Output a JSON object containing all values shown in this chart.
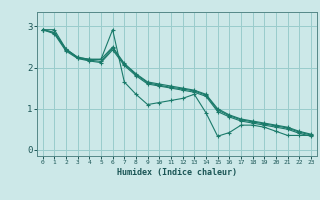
{
  "xlabel": "Humidex (Indice chaleur)",
  "bg_color": "#cce8e8",
  "grid_color": "#99cccc",
  "line_color": "#1a7a6a",
  "xlim": [
    -0.5,
    23.5
  ],
  "ylim": [
    -0.15,
    3.35
  ],
  "yticks": [
    0,
    1,
    2,
    3
  ],
  "xticks": [
    0,
    1,
    2,
    3,
    4,
    5,
    6,
    7,
    8,
    9,
    10,
    11,
    12,
    13,
    14,
    15,
    16,
    17,
    18,
    19,
    20,
    21,
    22,
    23
  ],
  "series": [
    {
      "x": [
        0,
        1,
        2,
        3,
        4,
        5,
        6,
        7,
        8,
        9,
        10,
        11,
        12,
        13,
        14,
        15,
        16,
        17,
        18,
        19,
        20,
        21,
        22,
        23
      ],
      "y": [
        2.92,
        2.92,
        2.45,
        2.25,
        2.2,
        2.2,
        2.92,
        1.65,
        1.35,
        1.1,
        1.15,
        1.2,
        1.25,
        1.35,
        0.9,
        0.33,
        0.42,
        0.6,
        0.6,
        0.55,
        0.45,
        0.35,
        0.35,
        0.35
      ]
    },
    {
      "x": [
        0,
        1,
        2,
        3,
        4,
        5,
        6,
        7,
        8,
        9,
        10,
        11,
        12,
        13,
        14,
        15,
        16,
        17,
        18,
        19,
        20,
        21,
        22,
        23
      ],
      "y": [
        2.92,
        2.85,
        2.45,
        2.25,
        2.2,
        2.2,
        2.5,
        2.1,
        1.85,
        1.65,
        1.6,
        1.55,
        1.5,
        1.45,
        1.35,
        1.0,
        0.85,
        0.75,
        0.7,
        0.65,
        0.6,
        0.55,
        0.45,
        0.38
      ]
    },
    {
      "x": [
        0,
        1,
        2,
        3,
        4,
        5,
        6,
        7,
        8,
        9,
        10,
        11,
        12,
        13,
        14,
        15,
        16,
        17,
        18,
        19,
        20,
        21,
        22,
        23
      ],
      "y": [
        2.92,
        2.85,
        2.43,
        2.23,
        2.18,
        2.15,
        2.47,
        2.08,
        1.83,
        1.63,
        1.57,
        1.52,
        1.48,
        1.43,
        1.33,
        0.97,
        0.83,
        0.73,
        0.68,
        0.63,
        0.58,
        0.53,
        0.43,
        0.36
      ]
    },
    {
      "x": [
        0,
        1,
        2,
        3,
        4,
        5,
        6,
        7,
        8,
        9,
        10,
        11,
        12,
        13,
        14,
        15,
        16,
        17,
        18,
        19,
        20,
        21,
        22,
        23
      ],
      "y": [
        2.92,
        2.82,
        2.4,
        2.22,
        2.16,
        2.12,
        2.43,
        2.05,
        1.8,
        1.6,
        1.55,
        1.5,
        1.45,
        1.4,
        1.3,
        0.93,
        0.8,
        0.7,
        0.65,
        0.6,
        0.55,
        0.5,
        0.4,
        0.33
      ]
    }
  ]
}
